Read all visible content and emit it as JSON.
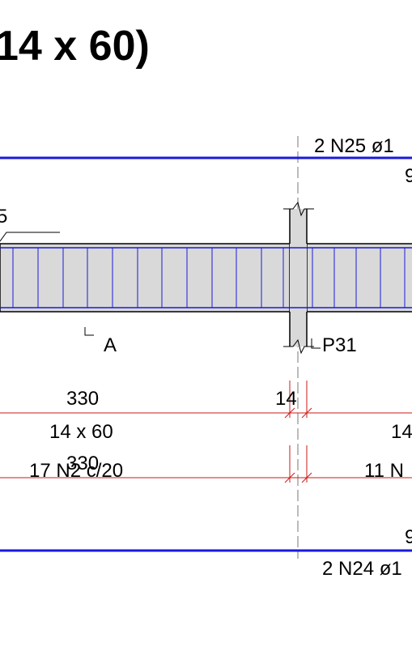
{
  "title": "14 x 60)",
  "top_bar_label": "2 N25 ø1",
  "top_bar_extra": "9",
  "stirrup_partial": "5",
  "section_marker": "A",
  "pillar_label": "P31",
  "span_left_length": "330",
  "pillar_width": "14",
  "section_dims": "14 x 60",
  "section_dims_partial": "14",
  "stirrup_length": "330",
  "stirrup_spec": "17 N2 c/20",
  "stirrup_spec_right": "11 N",
  "bottom_bar_extra": "9",
  "bottom_bar_label": "2 N24 ø1",
  "colors": {
    "rebar": "#1a1adc",
    "dimension": "#cc1a1a",
    "beam_fill": "#d9d9d9",
    "outline": "#000000"
  }
}
